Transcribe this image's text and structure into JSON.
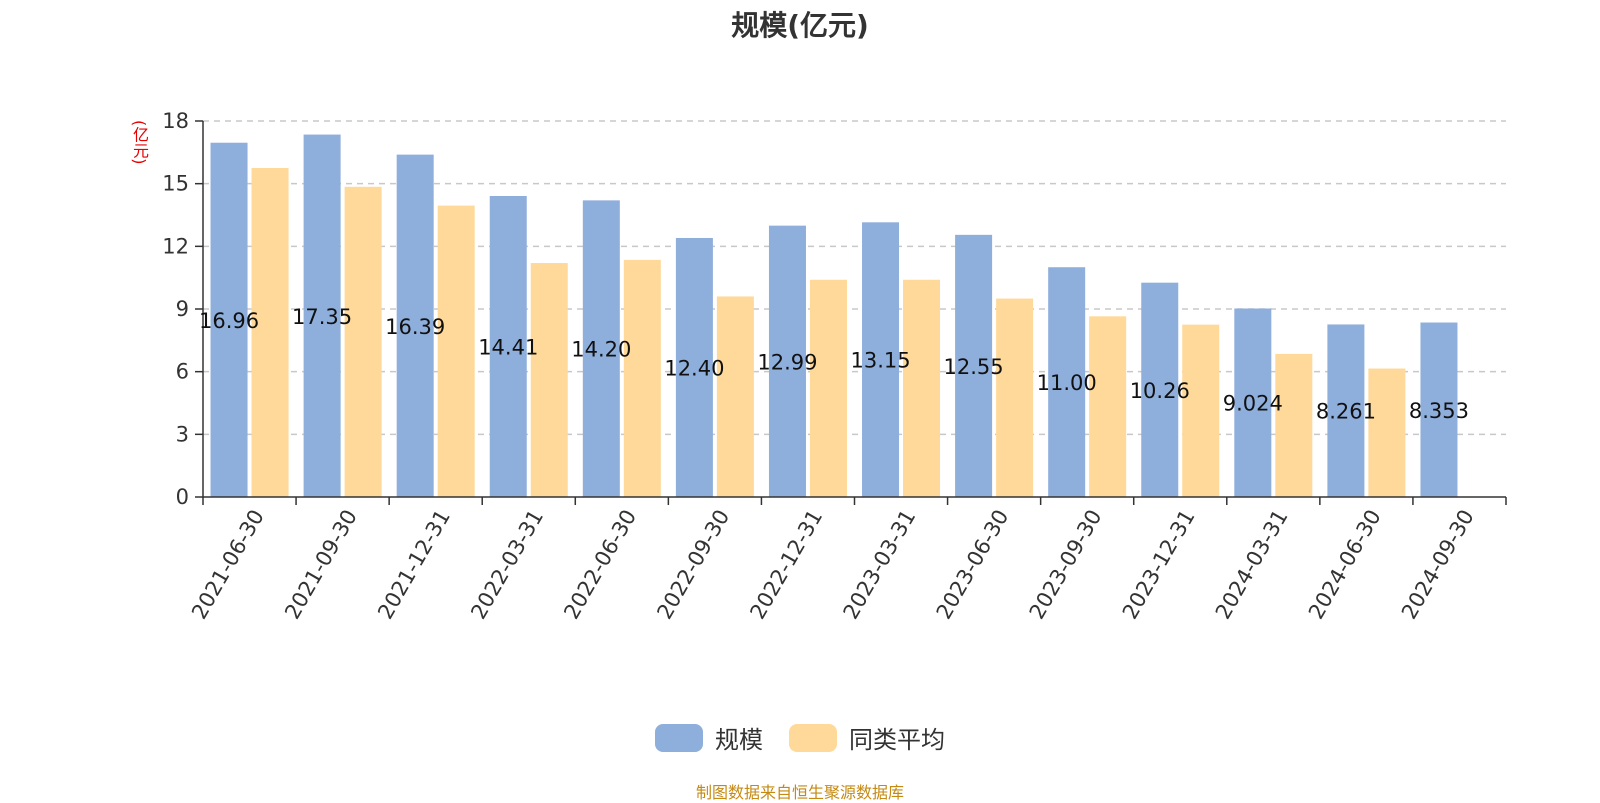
{
  "page": {
    "footer_note": "制图数据来自恒生聚源数据库"
  },
  "colors": {
    "series_1": "#8eaedc",
    "series_2": "#ffd999",
    "unit": "#e60000",
    "footer": "#c58a12",
    "axis": "#333333",
    "grid": "#c8c8c8"
  },
  "chart_data": {
    "type": "bar",
    "title": "规模(亿元)",
    "ylabel": "(亿元)",
    "xlabel": "",
    "ylim": [
      0,
      18
    ],
    "yticks": [
      0,
      3,
      6,
      9,
      12,
      15,
      18
    ],
    "grid": true,
    "legend_position": "bottom",
    "categories": [
      "2021-06-30",
      "2021-09-30",
      "2021-12-31",
      "2022-03-31",
      "2022-06-30",
      "2022-09-30",
      "2022-12-31",
      "2023-03-31",
      "2023-06-30",
      "2023-09-30",
      "2023-12-31",
      "2024-03-31",
      "2024-06-30",
      "2024-09-30"
    ],
    "series": [
      {
        "name": "规模",
        "values": [
          16.96,
          17.35,
          16.39,
          14.41,
          14.2,
          12.4,
          12.99,
          13.15,
          12.55,
          11.0,
          10.26,
          9.024,
          8.261,
          8.353
        ],
        "labels": [
          "16.96",
          "17.35",
          "16.39",
          "14.41",
          "14.20",
          "12.40",
          "12.99",
          "13.15",
          "12.55",
          "11.00",
          "10.26",
          "9.024",
          "8.261",
          "8.353"
        ]
      },
      {
        "name": "同类平均",
        "values": [
          15.75,
          14.85,
          13.95,
          11.2,
          11.35,
          9.6,
          10.4,
          10.4,
          9.5,
          8.65,
          8.25,
          6.85,
          6.15,
          null
        ]
      }
    ]
  }
}
